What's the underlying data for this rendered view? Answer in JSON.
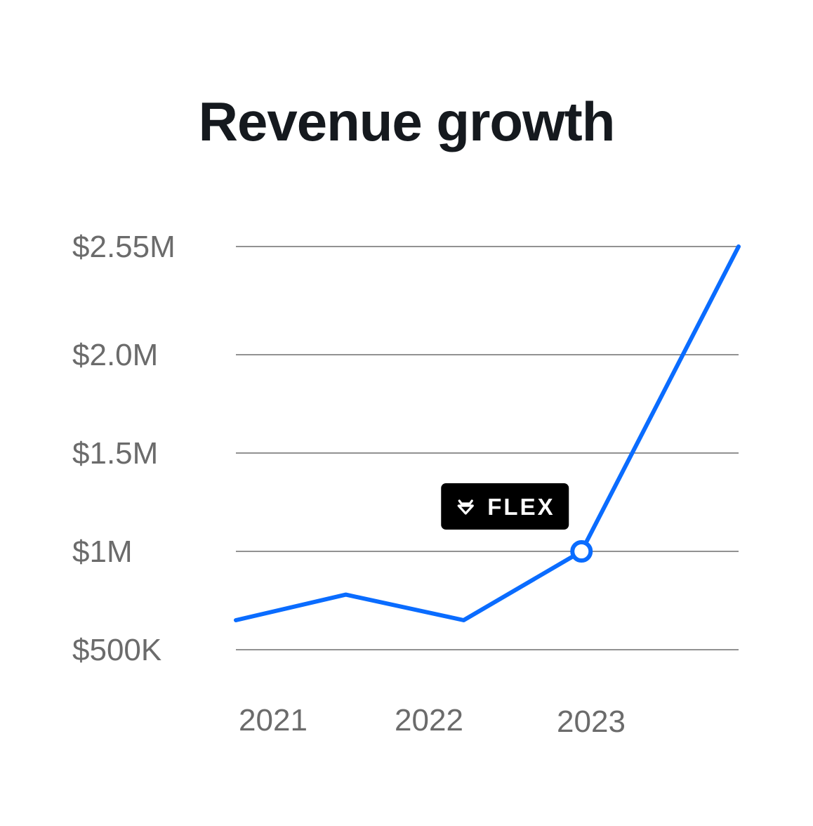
{
  "chart_data": {
    "type": "line",
    "title": "Revenue growth",
    "xlabel": "",
    "ylabel": "",
    "grid": true,
    "x_ticks": [
      "2021",
      "2022",
      "2023"
    ],
    "y_ticks": [
      {
        "value": 500000,
        "label": "$500K"
      },
      {
        "value": 1000000,
        "label": "$1M"
      },
      {
        "value": 1500000,
        "label": "$1.5M"
      },
      {
        "value": 2000000,
        "label": "$2.0M"
      },
      {
        "value": 2550000,
        "label": "$2.55M"
      }
    ],
    "ylim": [
      500000,
      2550000
    ],
    "xlim": [
      2020.8,
      2024.0
    ],
    "series": [
      {
        "name": "Revenue",
        "color": "#0a6cff",
        "points": [
          {
            "x": 2020.8,
            "y": 650000
          },
          {
            "x": 2021.5,
            "y": 780000
          },
          {
            "x": 2022.25,
            "y": 650000
          },
          {
            "x": 2023.0,
            "y": 1000000
          },
          {
            "x": 2024.0,
            "y": 2550000
          }
        ]
      }
    ],
    "annotation": {
      "label": "FLEX",
      "x": 2023.0,
      "y": 1000000,
      "icon": "flex-logo-icon"
    }
  }
}
